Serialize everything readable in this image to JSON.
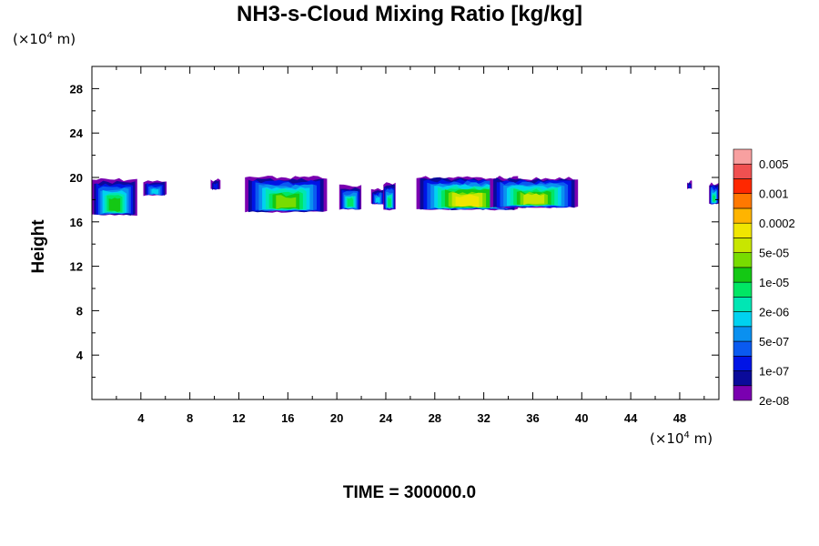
{
  "chart_data": {
    "type": "heatmap",
    "title": "NH3-s-Cloud Mixing Ratio [kg/kg]",
    "ylabel": "Height",
    "y_unit_prefix": "(×10",
    "y_unit_exp": "4",
    "y_unit_suffix": " m)",
    "x_unit_prefix": "(×10",
    "x_unit_exp": "4",
    "x_unit_suffix": " m)",
    "xlim": [
      0,
      51.2
    ],
    "ylim": [
      0,
      30
    ],
    "x_ticks": [
      4,
      8,
      12,
      16,
      20,
      24,
      28,
      32,
      36,
      40,
      44,
      48
    ],
    "y_ticks": [
      4,
      8,
      12,
      16,
      20,
      24,
      28
    ],
    "colorbar": {
      "labels": [
        "0.005",
        "0.001",
        "0.0002",
        "5e-05",
        "1e-05",
        "2e-06",
        "5e-07",
        "1e-07",
        "2e-08"
      ],
      "colors": [
        "#7a00b0",
        "#0a0a9a",
        "#0014e6",
        "#0a5af0",
        "#0a90f0",
        "#00d2f0",
        "#00e6b4",
        "#00e664",
        "#14c814",
        "#78dc00",
        "#c8e600",
        "#f0e600",
        "#ffb400",
        "#ff7800",
        "#ff2800",
        "#f05050",
        "#f8a0a0"
      ]
    },
    "cloud_patches": [
      {
        "x": [
          0,
          3.7
        ],
        "ytop": 19.8,
        "ybot": 16.6,
        "peak": 8
      },
      {
        "x": [
          4.2,
          6.1
        ],
        "ytop": 19.6,
        "ybot": 18.4,
        "peak": 5
      },
      {
        "x": [
          9.7,
          10.5
        ],
        "ytop": 19.8,
        "ybot": 18.9,
        "peak": 2
      },
      {
        "x": [
          12.5,
          19.2
        ],
        "ytop": 20.0,
        "ybot": 16.9,
        "peak": 9
      },
      {
        "x": [
          20.2,
          22.0
        ],
        "ytop": 19.2,
        "ybot": 17.1,
        "peak": 7
      },
      {
        "x": [
          22.8,
          23.9
        ],
        "ytop": 18.9,
        "ybot": 17.6,
        "peak": 5
      },
      {
        "x": [
          23.8,
          24.8
        ],
        "ytop": 19.4,
        "ybot": 17.1,
        "peak": 7
      },
      {
        "x": [
          26.5,
          34.8
        ],
        "ytop": 20.0,
        "ybot": 17.1,
        "peak": 11
      },
      {
        "x": [
          32.5,
          39.7
        ],
        "ytop": 19.9,
        "ybot": 17.3,
        "peak": 10
      },
      {
        "x": [
          48.6,
          49.0
        ],
        "ytop": 19.6,
        "ybot": 19.0,
        "peak": 2
      },
      {
        "x": [
          50.4,
          51.2
        ],
        "ytop": 19.4,
        "ybot": 17.6,
        "peak": 7
      }
    ],
    "time_label": "TIME = 300000.0"
  }
}
